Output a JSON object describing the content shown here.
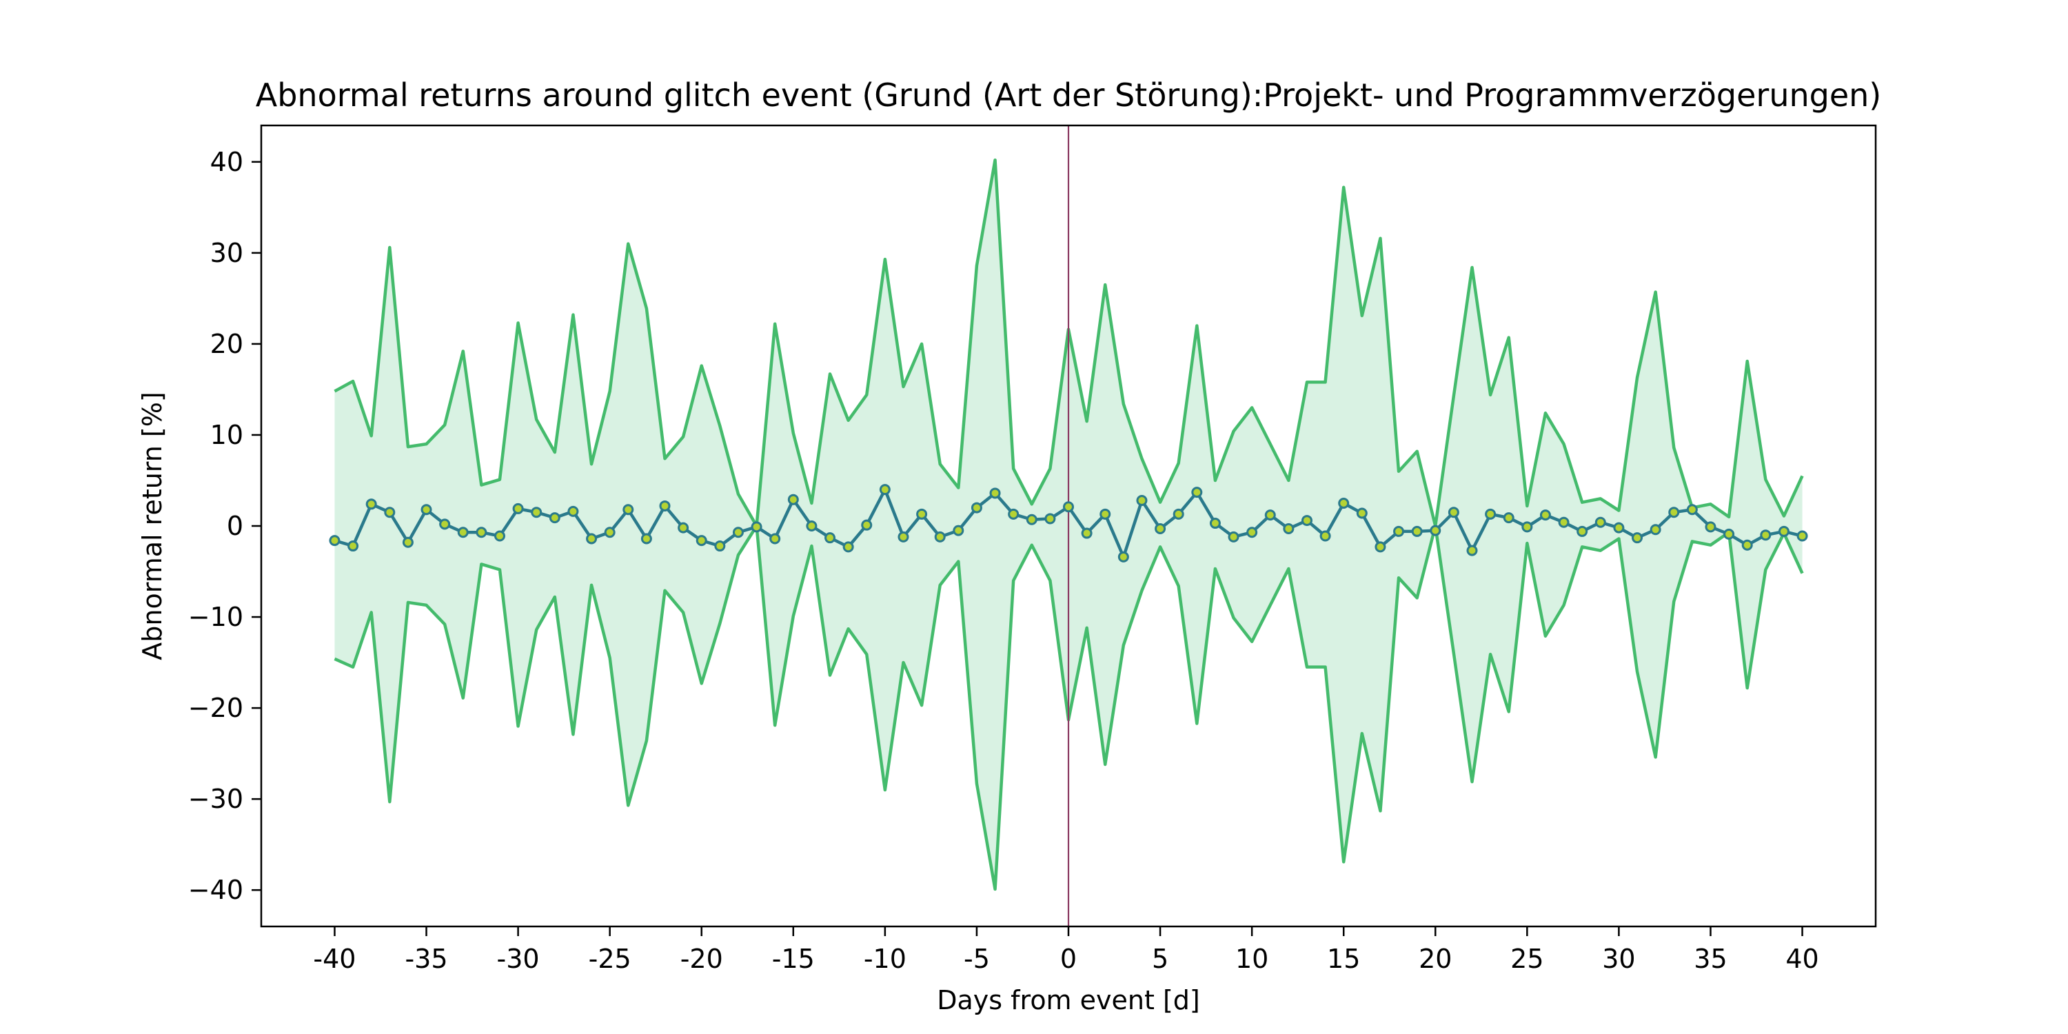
{
  "chart_data": {
    "type": "line",
    "title": "Abnormal returns around glitch event (Grund (Art der Störung):Projekt- und Programmverzögerungen)",
    "xlabel": "Days from event [d]",
    "ylabel": "Abnormal return [%]",
    "xlim": [
      -44,
      44
    ],
    "ylim": [
      -44,
      44
    ],
    "x_ticks": [
      -40,
      -35,
      -30,
      -25,
      -20,
      -15,
      -10,
      -5,
      0,
      5,
      10,
      15,
      20,
      25,
      30,
      35,
      40
    ],
    "x_tick_labels": [
      "-40",
      "-35",
      "-30",
      "-25",
      "-20",
      "-15",
      "-10",
      "-5",
      "0",
      "5",
      "10",
      "15",
      "20",
      "25",
      "30",
      "35",
      "40"
    ],
    "y_ticks": [
      -40,
      -30,
      -20,
      -10,
      0,
      10,
      20,
      30,
      40
    ],
    "y_tick_labels": [
      "−40",
      "−30",
      "−20",
      "−10",
      "0",
      "10",
      "20",
      "30",
      "40"
    ],
    "event_line_x": 0,
    "grid": false,
    "colors": {
      "band_fill": "#d9f2e3",
      "band_edge": "#44bb6c",
      "mean_line": "#2a7a8c",
      "marker_fill": "#b5d334",
      "marker_edge": "#2a7a8c",
      "event_line": "#8b3a62"
    },
    "x": [
      -40,
      -39,
      -38,
      -37,
      -36,
      -35,
      -34,
      -33,
      -32,
      -31,
      -30,
      -29,
      -28,
      -27,
      -26,
      -25,
      -24,
      -23,
      -22,
      -21,
      -20,
      -19,
      -18,
      -17,
      -16,
      -15,
      -14,
      -13,
      -12,
      -11,
      -10,
      -9,
      -8,
      -7,
      -6,
      -5,
      -4,
      -3,
      -2,
      -1,
      0,
      1,
      2,
      3,
      4,
      5,
      6,
      7,
      8,
      9,
      10,
      11,
      12,
      13,
      14,
      15,
      16,
      17,
      18,
      19,
      20,
      21,
      22,
      23,
      24,
      25,
      26,
      27,
      28,
      29,
      30,
      31,
      32,
      33,
      34,
      35,
      36,
      37,
      38,
      39,
      40
    ],
    "series": [
      {
        "role": "mean",
        "values": [
          -1.6,
          -2.2,
          2.4,
          1.5,
          -1.8,
          1.8,
          0.2,
          -0.7,
          -0.7,
          -1.1,
          1.9,
          1.5,
          0.9,
          1.6,
          -1.4,
          -0.7,
          1.8,
          -1.4,
          2.2,
          -0.2,
          -1.6,
          -2.2,
          -0.7,
          -0.1,
          -1.4,
          2.9,
          0.0,
          -1.3,
          -2.3,
          0.1,
          4.0,
          -1.2,
          1.3,
          -1.2,
          -0.5,
          2.0,
          3.6,
          1.3,
          0.7,
          0.8,
          2.1,
          -0.8,
          1.3,
          -3.4,
          2.8,
          -0.3,
          1.3,
          3.7,
          0.3,
          -1.2,
          -0.7,
          1.2,
          -0.3,
          0.6,
          -1.1,
          2.5,
          1.4,
          -2.3,
          -0.6,
          -0.6,
          -0.5,
          1.5,
          -2.7,
          1.3,
          0.9,
          -0.1,
          1.2,
          0.4,
          -0.6,
          0.4,
          -0.2,
          -1.3,
          -0.4,
          1.5,
          1.8,
          -0.1,
          -0.9,
          -2.1,
          -1.0,
          -0.6,
          -1.1
        ]
      },
      {
        "role": "upper",
        "values": [
          14.8,
          15.9,
          9.9,
          30.6,
          8.7,
          9.0,
          11.1,
          19.2,
          4.5,
          5.1,
          22.3,
          11.7,
          8.1,
          23.2,
          6.8,
          14.8,
          31.0,
          23.9,
          7.4,
          9.8,
          17.6,
          11.0,
          3.5,
          0.0,
          22.2,
          10.2,
          2.5,
          16.7,
          11.6,
          14.4,
          29.3,
          15.3,
          20.0,
          6.8,
          4.2,
          28.6,
          40.2,
          6.3,
          2.4,
          6.3,
          21.6,
          11.5,
          26.5,
          13.4,
          7.4,
          2.6,
          6.9,
          22.0,
          5.0,
          10.4,
          13.0,
          9.0,
          5.0,
          15.8,
          15.8,
          37.2,
          23.1,
          31.6,
          6.0,
          8.2,
          0.0,
          14.3,
          28.4,
          14.4,
          20.7,
          2.2,
          12.4,
          9.0,
          2.6,
          3.0,
          1.7,
          16.3,
          25.7,
          8.6,
          2.0,
          2.4,
          1.0,
          18.1,
          5.1,
          1.1,
          5.5
        ]
      },
      {
        "role": "lower",
        "values": [
          -14.6,
          -15.5,
          -9.5,
          -30.3,
          -8.4,
          -8.7,
          -10.8,
          -18.9,
          -4.2,
          -4.8,
          -22.0,
          -11.4,
          -7.8,
          -22.9,
          -6.5,
          -14.5,
          -30.7,
          -23.6,
          -7.1,
          -9.5,
          -17.3,
          -10.7,
          -3.2,
          0.0,
          -21.9,
          -9.9,
          -2.2,
          -16.4,
          -11.3,
          -14.1,
          -29.0,
          -15.0,
          -19.7,
          -6.5,
          -3.9,
          -28.3,
          -39.9,
          -6.0,
          -2.1,
          -6.0,
          -21.3,
          -11.2,
          -26.2,
          -13.1,
          -7.1,
          -2.3,
          -6.6,
          -21.7,
          -4.7,
          -10.1,
          -12.7,
          -8.7,
          -4.7,
          -15.5,
          -15.5,
          -36.9,
          -22.8,
          -31.3,
          -5.7,
          -7.9,
          0.0,
          -14.0,
          -28.1,
          -14.1,
          -20.4,
          -1.9,
          -12.1,
          -8.7,
          -2.3,
          -2.7,
          -1.4,
          -16.0,
          -25.4,
          -8.3,
          -1.7,
          -2.1,
          -0.7,
          -17.8,
          -4.8,
          -0.8,
          -5.2
        ]
      }
    ]
  }
}
